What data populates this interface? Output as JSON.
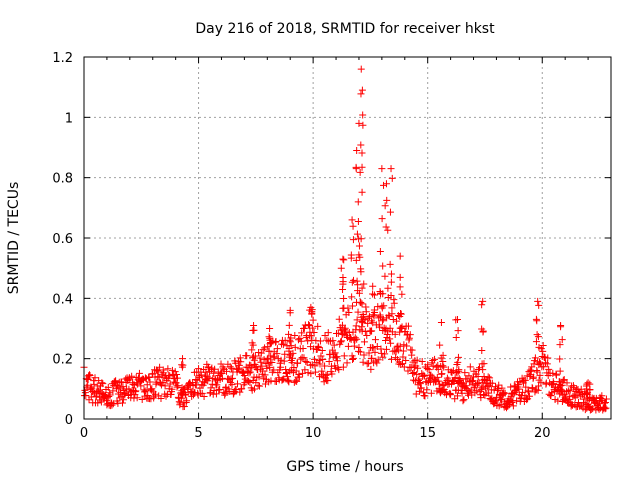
{
  "chart_data": {
    "type": "scatter",
    "title": "Day 216 of 2018, SRMTID for receiver hkst",
    "xlabel": "GPS time / hours",
    "ylabel": "SRMTID / TECUs",
    "xlim": [
      0,
      23
    ],
    "ylim": [
      0,
      1.2
    ],
    "xticks": [
      0,
      5,
      10,
      15,
      20
    ],
    "xtick_labels": [
      "0",
      "5",
      "10",
      "15",
      "20"
    ],
    "yticks": [
      0,
      0.2,
      0.4,
      0.6,
      0.8,
      1,
      1.2
    ],
    "ytick_labels": [
      "0",
      "0.2",
      "0.4",
      "0.6",
      "0.8",
      "1",
      "1.2"
    ],
    "grid": true,
    "marker": "plus",
    "marker_color": "#ff0000",
    "series": [
      {
        "name": "SRMTID",
        "profile": {
          "x": [
            0,
            0.3,
            0.6,
            1.0,
            1.5,
            2.0,
            2.5,
            3.0,
            3.5,
            4.0,
            4.3,
            4.6,
            5.0,
            5.5,
            6.0,
            6.5,
            7.0,
            7.5,
            8.0,
            8.5,
            9.0,
            9.5,
            10.0,
            10.5,
            11.0,
            11.5,
            12.0,
            12.5,
            13.0,
            13.5,
            14.0,
            14.5,
            15.0,
            15.5,
            16.0,
            16.5,
            17.0,
            17.5,
            18.0,
            18.5,
            19.0,
            19.5,
            20.0,
            20.5,
            21.0,
            21.5,
            22.0,
            22.5,
            22.8
          ],
          "y": [
            0.12,
            0.1,
            0.09,
            0.08,
            0.09,
            0.1,
            0.11,
            0.12,
            0.12,
            0.11,
            0.07,
            0.1,
            0.12,
            0.13,
            0.13,
            0.14,
            0.15,
            0.16,
            0.18,
            0.2,
            0.19,
            0.22,
            0.24,
            0.2,
            0.22,
            0.3,
            0.33,
            0.25,
            0.28,
            0.3,
            0.26,
            0.14,
            0.13,
            0.15,
            0.12,
            0.1,
            0.14,
            0.11,
            0.08,
            0.07,
            0.09,
            0.12,
            0.18,
            0.11,
            0.09,
            0.07,
            0.06,
            0.05,
            0.05
          ]
        },
        "spikes": [
          {
            "x": 4.3,
            "y": 0.2
          },
          {
            "x": 7.4,
            "y": 0.31
          },
          {
            "x": 8.1,
            "y": 0.3
          },
          {
            "x": 9.0,
            "y": 0.36
          },
          {
            "x": 9.9,
            "y": 0.37
          },
          {
            "x": 11.3,
            "y": 0.53
          },
          {
            "x": 11.7,
            "y": 0.66
          },
          {
            "x": 11.9,
            "y": 0.89
          },
          {
            "x": 12.0,
            "y": 0.98
          },
          {
            "x": 12.1,
            "y": 1.16
          },
          {
            "x": 12.15,
            "y": 1.09
          },
          {
            "x": 12.6,
            "y": 0.44
          },
          {
            "x": 13.0,
            "y": 0.83
          },
          {
            "x": 13.2,
            "y": 0.78
          },
          {
            "x": 13.4,
            "y": 0.83
          },
          {
            "x": 13.8,
            "y": 0.54
          },
          {
            "x": 15.6,
            "y": 0.32
          },
          {
            "x": 16.3,
            "y": 0.33
          },
          {
            "x": 17.4,
            "y": 0.39
          },
          {
            "x": 19.8,
            "y": 0.39
          },
          {
            "x": 20.8,
            "y": 0.31
          },
          {
            "x": 22.0,
            "y": 0.12
          }
        ]
      }
    ]
  }
}
